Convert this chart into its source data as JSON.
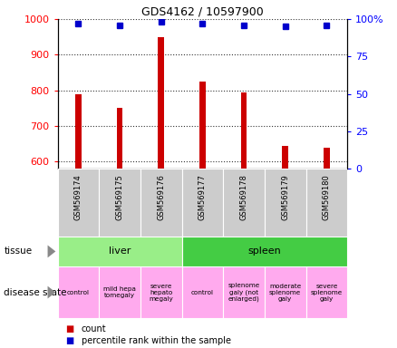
{
  "title": "GDS4162 / 10597900",
  "samples": [
    "GSM569174",
    "GSM569175",
    "GSM569176",
    "GSM569177",
    "GSM569178",
    "GSM569179",
    "GSM569180"
  ],
  "count_values": [
    790,
    750,
    950,
    825,
    795,
    643,
    638
  ],
  "percentile_values": [
    97,
    96,
    98,
    97,
    96,
    95,
    96
  ],
  "ylim_left": [
    580,
    1000
  ],
  "ylim_right": [
    0,
    100
  ],
  "yticks_left": [
    600,
    700,
    800,
    900,
    1000
  ],
  "yticks_right": [
    0,
    25,
    50,
    75,
    100
  ],
  "ytick_labels_right": [
    "0",
    "25",
    "50",
    "75",
    "100%"
  ],
  "bar_color": "#cc0000",
  "dot_color": "#0000cc",
  "tissue_groups": [
    {
      "label": "liver",
      "start": 0,
      "end": 3,
      "color": "#99ee88"
    },
    {
      "label": "spleen",
      "start": 3,
      "end": 7,
      "color": "#44cc44"
    }
  ],
  "disease_states": [
    {
      "label": "control",
      "col": 0,
      "color": "#ffaaee"
    },
    {
      "label": "mild hepa\ntomegaly",
      "col": 1,
      "color": "#ffaaee"
    },
    {
      "label": "severe\nhepato\nmegaly",
      "col": 2,
      "color": "#ffaaee"
    },
    {
      "label": "control",
      "col": 3,
      "color": "#ffaaee"
    },
    {
      "label": "splenome\ngaly (not\nenlarged)",
      "col": 4,
      "color": "#ffaaee"
    },
    {
      "label": "moderate\nsplenome\ngaly",
      "col": 5,
      "color": "#ffaaee"
    },
    {
      "label": "severe\nsplenome\ngaly",
      "col": 6,
      "color": "#ffaaee"
    }
  ],
  "legend_count_color": "#cc0000",
  "legend_dot_color": "#0000cc",
  "grid_color": "#333333",
  "sample_bg_color": "#cccccc",
  "bar_width": 0.15,
  "dot_size": 5
}
